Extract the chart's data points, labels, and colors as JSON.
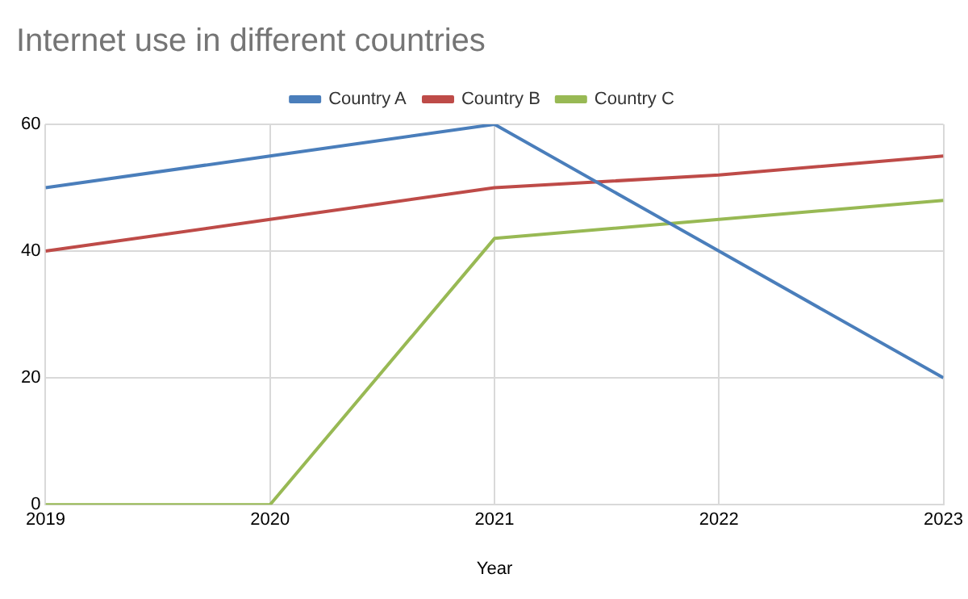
{
  "chart_data": {
    "type": "line",
    "title": "Internet use in different countries",
    "xlabel": "Year",
    "x": [
      2019,
      2020,
      2021,
      2022,
      2023
    ],
    "series": [
      {
        "name": "Country A",
        "color": "#4a7ebb",
        "values": [
          50,
          55,
          60,
          40,
          20
        ]
      },
      {
        "name": "Country B",
        "color": "#be4b48",
        "values": [
          40,
          45,
          50,
          52,
          55
        ]
      },
      {
        "name": "Country C",
        "color": "#98b954",
        "values": [
          0,
          0,
          42,
          45,
          48
        ]
      }
    ],
    "xlim": [
      2019,
      2023
    ],
    "xticks": [
      2019,
      2020,
      2021,
      2022,
      2023
    ],
    "ylim": [
      0,
      60
    ],
    "yticks": [
      0,
      20,
      40,
      60
    ],
    "grid": true,
    "legend": "top",
    "marker": "none",
    "line_style": "solid"
  }
}
